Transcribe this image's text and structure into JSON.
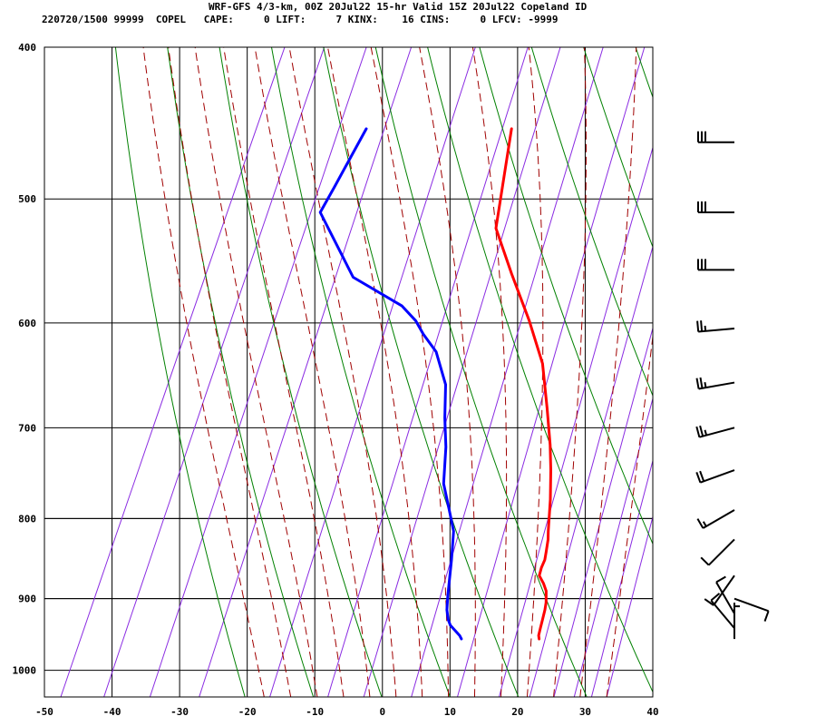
{
  "header": {
    "line1": "WRF-GFS 4/3-km, 00Z 20Jul22 15-hr Valid 15Z 20Jul22 Copeland ID",
    "line2": "220720/1500 99999  COPEL   CAPE:     0 LIFT:     7 KINX:    16 CINS:     0 LFCV: -9999"
  },
  "chart_data": {
    "type": "line",
    "diagram": "skew-T log-P sounding",
    "xlim": [
      -50,
      40
    ],
    "ylim": [
      1040,
      400
    ],
    "y_scale": "log",
    "x_ticks": [
      "-50",
      "-40",
      "-30",
      "-20",
      "-10",
      "0",
      "10",
      "20",
      "30",
      "40"
    ],
    "y_ticks": [
      "400",
      "500",
      "600",
      "700",
      "800",
      "900",
      "1000"
    ],
    "grid": true,
    "colors": {
      "temperature": "#ff0000",
      "dewpoint": "#0000ff",
      "dry_adiabat": "#008000",
      "moist_adiabat": "#a00000",
      "mixing_ratio": "#8a2be2",
      "grid": "#000000",
      "wind": "#000000"
    },
    "series": [
      {
        "key": "temperature",
        "points": [
          [
            19.5,
            955
          ],
          [
            19.2,
            950
          ],
          [
            19.0,
            940
          ],
          [
            18.8,
            930
          ],
          [
            18.5,
            915
          ],
          [
            18.2,
            905
          ],
          [
            17.5,
            890
          ],
          [
            16.6,
            880
          ],
          [
            15.5,
            870
          ],
          [
            15.3,
            860
          ],
          [
            15.3,
            850
          ],
          [
            15.0,
            840
          ],
          [
            14.5,
            825
          ],
          [
            14.0,
            815
          ],
          [
            12.3,
            778
          ],
          [
            10.5,
            745
          ],
          [
            8.8,
            718
          ],
          [
            6.0,
            680
          ],
          [
            2.5,
            637
          ],
          [
            -2.2,
            598
          ],
          [
            -7.8,
            558
          ],
          [
            -13.0,
            522
          ],
          [
            -17.0,
            451
          ]
        ]
      },
      {
        "key": "dewpoint",
        "points": [
          [
            8.0,
            955
          ],
          [
            7.5,
            950
          ],
          [
            6.5,
            943
          ],
          [
            5.5,
            936
          ],
          [
            4.8,
            928
          ],
          [
            4.0,
            915
          ],
          [
            3.2,
            895
          ],
          [
            1.5,
            850
          ],
          [
            0.0,
            815
          ],
          [
            -2.0,
            790
          ],
          [
            -4.5,
            760
          ],
          [
            -6.5,
            720
          ],
          [
            -8.5,
            690
          ],
          [
            -10.5,
            657
          ],
          [
            -14.0,
            626
          ],
          [
            -17.0,
            610
          ],
          [
            -19.0,
            598
          ],
          [
            -22.0,
            585
          ],
          [
            -31.0,
            561
          ],
          [
            -40.0,
            510
          ],
          [
            -39.5,
            491
          ],
          [
            -38.5,
            451
          ]
        ]
      }
    ],
    "dry_adiabats_K": [
      250,
      260,
      270,
      280,
      290,
      300,
      310,
      320,
      330,
      340,
      350,
      360,
      370,
      380,
      390,
      400
    ],
    "moist_adiabats_C": [
      -20,
      -16,
      -12,
      -8,
      -4,
      0,
      4,
      8,
      12,
      16,
      20,
      24,
      28,
      32
    ],
    "mixing_ratio_gkg": [
      0.05,
      0.1,
      0.2,
      0.4,
      1,
      2,
      3,
      5,
      8,
      12,
      16,
      20,
      24,
      28,
      32
    ],
    "wind_barbs": [
      {
        "p": 460,
        "speed_kt": 30,
        "dir_deg": 270
      },
      {
        "p": 510,
        "speed_kt": 30,
        "dir_deg": 270
      },
      {
        "p": 555,
        "speed_kt": 30,
        "dir_deg": 270
      },
      {
        "p": 605,
        "speed_kt": 25,
        "dir_deg": 265
      },
      {
        "p": 655,
        "speed_kt": 25,
        "dir_deg": 260
      },
      {
        "p": 700,
        "speed_kt": 25,
        "dir_deg": 255
      },
      {
        "p": 745,
        "speed_kt": 20,
        "dir_deg": 250
      },
      {
        "p": 790,
        "speed_kt": 15,
        "dir_deg": 240
      },
      {
        "p": 825,
        "speed_kt": 10,
        "dir_deg": 225
      },
      {
        "p": 870,
        "speed_kt": 10,
        "dir_deg": 215
      },
      {
        "p": 900,
        "speed_kt": 10,
        "dir_deg": 110
      },
      {
        "p": 920,
        "speed_kt": 10,
        "dir_deg": 330
      },
      {
        "p": 940,
        "speed_kt": 10,
        "dir_deg": 320
      },
      {
        "p": 955,
        "speed_kt": 5,
        "dir_deg": 0
      }
    ]
  }
}
